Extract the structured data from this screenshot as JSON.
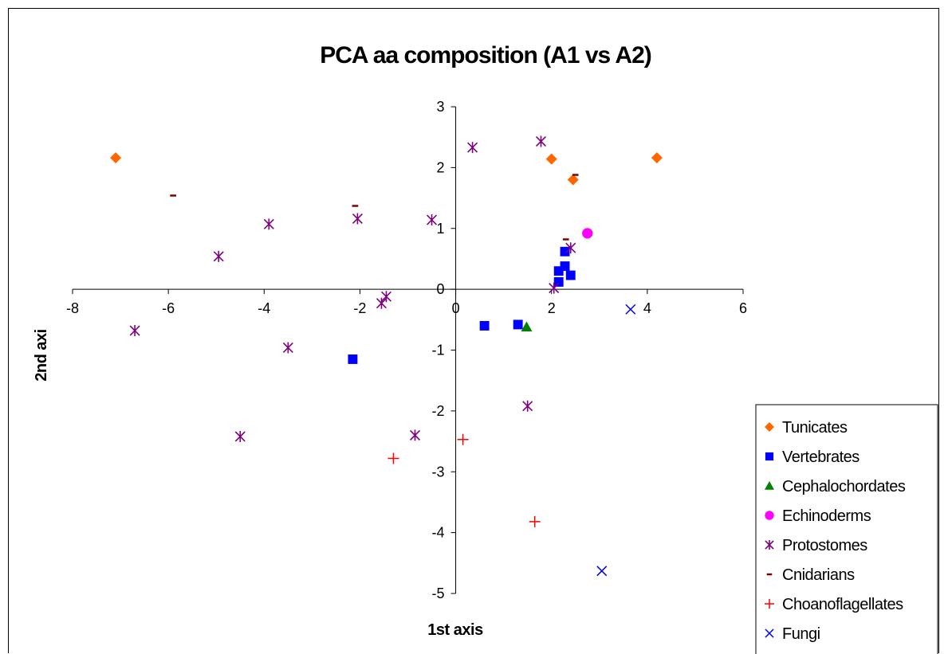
{
  "chart_data": {
    "type": "scatter",
    "title": "PCA aa composition (A1 vs A2)",
    "xlabel": "1st axis",
    "ylabel": "2nd axi",
    "xlim": [
      -8,
      6
    ],
    "ylim": [
      -5,
      3
    ],
    "xticks": [
      -8,
      -6,
      -4,
      -2,
      0,
      2,
      4,
      6
    ],
    "yticks": [
      3,
      2,
      1,
      0,
      -1,
      -2,
      -3,
      -4,
      -5
    ],
    "grid": false,
    "legend_position": "bottom-right",
    "series": [
      {
        "name": "Tunicates",
        "marker": "diamond",
        "color": "#ff6600",
        "points": [
          [
            -7.1,
            2.16
          ],
          [
            2.0,
            2.14
          ],
          [
            2.45,
            1.8
          ],
          [
            4.2,
            2.16
          ]
        ]
      },
      {
        "name": "Vertebrates",
        "marker": "square",
        "color": "#0000ff",
        "points": [
          [
            -2.15,
            -1.15
          ],
          [
            0.6,
            -0.6
          ],
          [
            1.3,
            -0.58
          ],
          [
            2.15,
            0.12
          ],
          [
            2.15,
            0.3
          ],
          [
            2.28,
            0.38
          ],
          [
            2.28,
            0.62
          ],
          [
            2.4,
            0.23
          ]
        ]
      },
      {
        "name": "Cephalochordates",
        "marker": "triangle",
        "color": "#008000",
        "points": [
          [
            1.48,
            -0.62
          ]
        ]
      },
      {
        "name": "Echinoderms",
        "marker": "circle",
        "color": "#ff00ff",
        "points": [
          [
            2.75,
            0.92
          ]
        ]
      },
      {
        "name": "Protostomes",
        "marker": "asterisk",
        "color": "#800080",
        "points": [
          [
            -6.7,
            -0.68
          ],
          [
            -4.95,
            0.54
          ],
          [
            -4.5,
            -2.42
          ],
          [
            -3.9,
            1.07
          ],
          [
            -3.5,
            -0.96
          ],
          [
            -2.05,
            1.16
          ],
          [
            -1.55,
            -0.23
          ],
          [
            -1.45,
            -0.12
          ],
          [
            -0.85,
            -2.4
          ],
          [
            -0.5,
            1.14
          ],
          [
            0.35,
            2.33
          ],
          [
            1.5,
            -1.92
          ],
          [
            1.78,
            2.43
          ],
          [
            2.05,
            0.02
          ],
          [
            2.4,
            0.68
          ]
        ]
      },
      {
        "name": "Cnidarians",
        "marker": "dash",
        "color": "#800000",
        "points": [
          [
            -5.9,
            1.54
          ],
          [
            -2.1,
            1.37
          ],
          [
            2.3,
            0.82
          ],
          [
            2.5,
            1.88
          ]
        ]
      },
      {
        "name": "Choanoflagellates",
        "marker": "plus",
        "color": "#ff0000",
        "points": [
          [
            -1.3,
            -2.78
          ],
          [
            0.15,
            -2.47
          ],
          [
            1.65,
            -3.82
          ]
        ]
      },
      {
        "name": "Fungi",
        "marker": "x",
        "color": "#0000ff",
        "points": [
          [
            3.05,
            -4.63
          ],
          [
            3.65,
            -0.33
          ]
        ]
      }
    ]
  }
}
